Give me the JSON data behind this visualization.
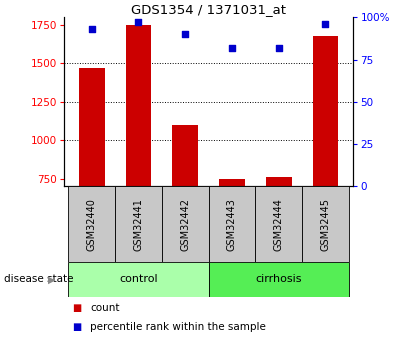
{
  "title": "GDS1354 / 1371031_at",
  "categories": [
    "GSM32440",
    "GSM32441",
    "GSM32442",
    "GSM32443",
    "GSM32444",
    "GSM32445"
  ],
  "bar_values": [
    1470,
    1750,
    1100,
    750,
    760,
    1680
  ],
  "percentile_values": [
    93,
    97,
    90,
    82,
    82,
    96
  ],
  "bar_color": "#cc0000",
  "point_color": "#0000cc",
  "ylim_left": [
    700,
    1800
  ],
  "ylim_right": [
    0,
    100
  ],
  "yticks_left": [
    750,
    1000,
    1250,
    1500,
    1750
  ],
  "yticks_right": [
    0,
    25,
    50,
    75,
    100
  ],
  "ytick_labels_right": [
    "0",
    "25",
    "50",
    "75",
    "100%"
  ],
  "grid_values": [
    1000,
    1250,
    1500
  ],
  "control_group": [
    0,
    1,
    2
  ],
  "cirrhosis_group": [
    3,
    4,
    5
  ],
  "control_color": "#aaffaa",
  "cirrhosis_color": "#55ee55",
  "xlabel_area_color": "#c8c8c8",
  "legend_count_label": "count",
  "legend_percentile_label": "percentile rank within the sample",
  "disease_state_label": "disease state",
  "control_label": "control",
  "cirrhosis_label": "cirrhosis",
  "title_fontsize": 9.5,
  "tick_fontsize": 7.5,
  "label_fontsize": 7.5,
  "cat_fontsize": 7.0,
  "group_fontsize": 8.0,
  "legend_fontsize": 7.5,
  "disease_state_fontsize": 7.5
}
